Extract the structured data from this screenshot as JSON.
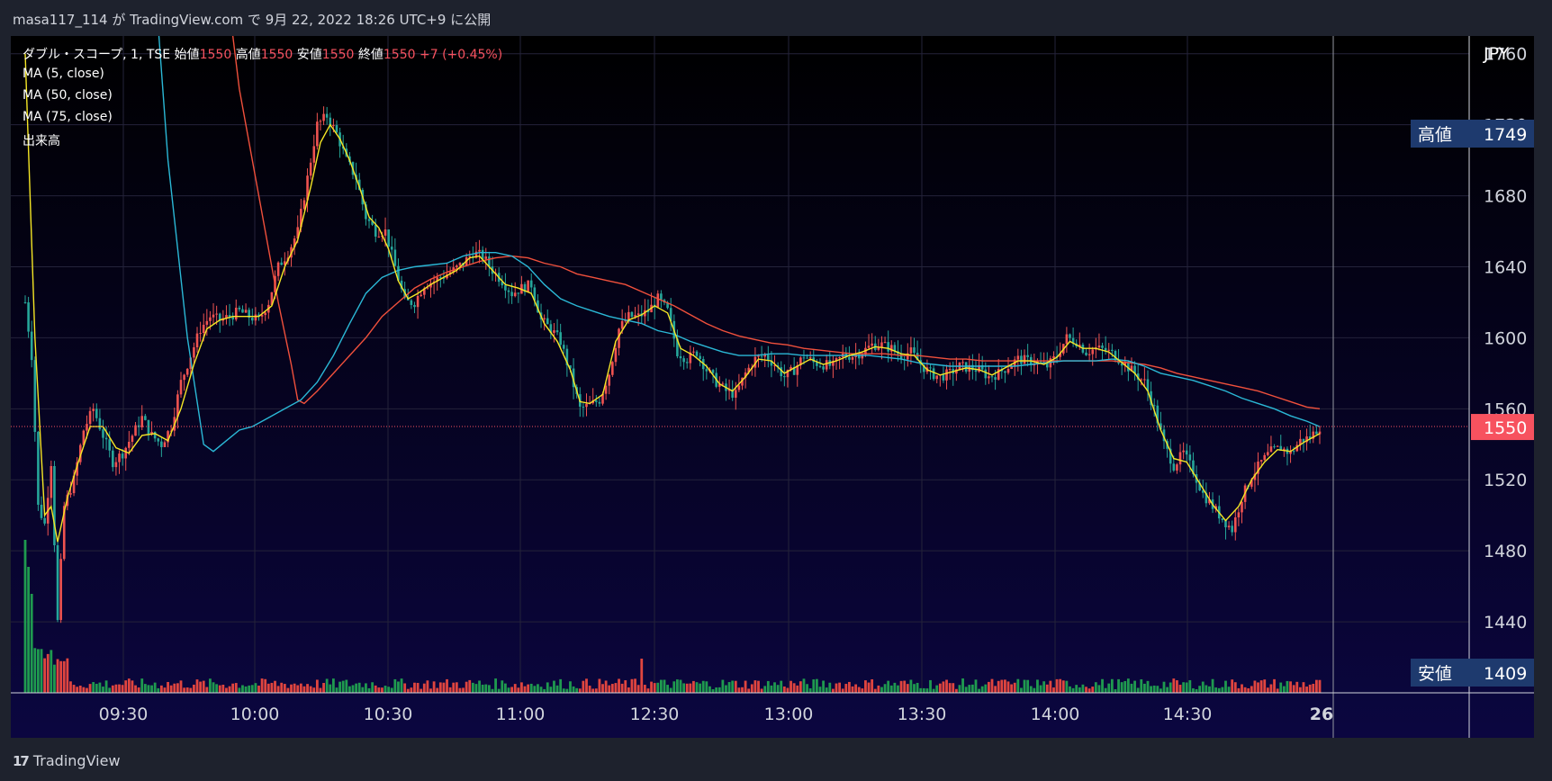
{
  "header": {
    "publish_info": "masa117_114 が TradingView.com で 9月 22, 2022 18:26 UTC+9 に公開"
  },
  "legend": {
    "symbol": "ダブル・スコープ, 1, TSE",
    "open_label": "始値",
    "open_value": "1550",
    "high_label": "高値",
    "high_value": "1550",
    "low_label": "安値",
    "low_value": "1550",
    "close_label": "終値",
    "close_value": "1550",
    "change": "+7 (+0.45%)",
    "indicators": [
      "MA (5, close)",
      "MA (50, close)",
      "MA (75, close)",
      "出来高"
    ]
  },
  "brand": {
    "name": "TradingView"
  },
  "colors": {
    "up": "#ef5350",
    "down": "#26a69a",
    "vol_up": "#e0453f",
    "vol_down": "#1f9a4f",
    "ma5": "#f5e625",
    "ma50": "#2bb8d6",
    "ma75": "#f0503c",
    "price_line": "#f7525f",
    "bg_top": "#000000",
    "bg_bottom": "#0b0640",
    "grid": "#24233a",
    "badge_blue": "#1e3a6e"
  },
  "chart_data": {
    "type": "candlestick",
    "currency": "JPY",
    "y_range": [
      1400,
      1770
    ],
    "y_ticks": [
      1440,
      1480,
      1520,
      1560,
      1600,
      1640,
      1680,
      1720,
      1760
    ],
    "x_ticks": [
      "09:30",
      "10:00",
      "10:30",
      "11:00",
      "12:30",
      "13:00",
      "13:30",
      "14:00",
      "14:30",
      "26"
    ],
    "current_price": {
      "value": 1550,
      "label": "1550"
    },
    "high_marker": {
      "label": "高値",
      "value": 1749
    },
    "low_marker": {
      "label": "安値",
      "value": 1409
    },
    "grid": true,
    "price_path": [
      [
        0,
        1620
      ],
      [
        2,
        1590
      ],
      [
        4,
        1505
      ],
      [
        6,
        1495
      ],
      [
        8,
        1530
      ],
      [
        10,
        1440
      ],
      [
        12,
        1505
      ],
      [
        15,
        1520
      ],
      [
        18,
        1548
      ],
      [
        21,
        1560
      ],
      [
        24,
        1545
      ],
      [
        27,
        1530
      ],
      [
        30,
        1535
      ],
      [
        33,
        1545
      ],
      [
        36,
        1555
      ],
      [
        39,
        1545
      ],
      [
        42,
        1540
      ],
      [
        45,
        1550
      ],
      [
        48,
        1575
      ],
      [
        51,
        1590
      ],
      [
        54,
        1605
      ],
      [
        57,
        1612
      ],
      [
        60,
        1610
      ],
      [
        63,
        1612
      ],
      [
        66,
        1615
      ],
      [
        69,
        1612
      ],
      [
        72,
        1610
      ],
      [
        75,
        1620
      ],
      [
        78,
        1640
      ],
      [
        81,
        1648
      ],
      [
        84,
        1660
      ],
      [
        87,
        1690
      ],
      [
        90,
        1720
      ],
      [
        93,
        1725
      ],
      [
        96,
        1715
      ],
      [
        99,
        1700
      ],
      [
        102,
        1690
      ],
      [
        105,
        1668
      ],
      [
        108,
        1660
      ],
      [
        111,
        1660
      ],
      [
        114,
        1640
      ],
      [
        117,
        1620
      ],
      [
        120,
        1620
      ],
      [
        123,
        1630
      ],
      [
        126,
        1632
      ],
      [
        129,
        1635
      ],
      [
        132,
        1638
      ],
      [
        135,
        1642
      ],
      [
        138,
        1648
      ],
      [
        141,
        1646
      ],
      [
        144,
        1638
      ],
      [
        147,
        1632
      ],
      [
        150,
        1625
      ],
      [
        153,
        1628
      ],
      [
        156,
        1630
      ],
      [
        159,
        1610
      ],
      [
        162,
        1605
      ],
      [
        165,
        1598
      ],
      [
        168,
        1580
      ],
      [
        171,
        1560
      ],
      [
        174,
        1562
      ],
      [
        177,
        1565
      ],
      [
        180,
        1580
      ],
      [
        183,
        1605
      ],
      [
        186,
        1612
      ],
      [
        189,
        1612
      ],
      [
        192,
        1615
      ],
      [
        195,
        1622
      ],
      [
        198,
        1615
      ],
      [
        201,
        1592
      ],
      [
        204,
        1588
      ],
      [
        207,
        1592
      ],
      [
        210,
        1582
      ],
      [
        213,
        1575
      ],
      [
        216,
        1570
      ],
      [
        219,
        1568
      ],
      [
        222,
        1580
      ],
      [
        225,
        1588
      ],
      [
        228,
        1590
      ],
      [
        231,
        1585
      ],
      [
        234,
        1578
      ],
      [
        237,
        1582
      ],
      [
        240,
        1590
      ],
      [
        243,
        1586
      ],
      [
        246,
        1585
      ],
      [
        249,
        1584
      ],
      [
        252,
        1590
      ],
      [
        255,
        1590
      ],
      [
        258,
        1592
      ],
      [
        261,
        1596
      ],
      [
        264,
        1596
      ],
      [
        267,
        1594
      ],
      [
        270,
        1590
      ],
      [
        273,
        1592
      ],
      [
        276,
        1585
      ],
      [
        279,
        1580
      ],
      [
        282,
        1578
      ],
      [
        285,
        1580
      ],
      [
        288,
        1584
      ],
      [
        291,
        1583
      ],
      [
        294,
        1582
      ],
      [
        297,
        1578
      ],
      [
        300,
        1580
      ],
      [
        303,
        1584
      ],
      [
        306,
        1588
      ],
      [
        309,
        1587
      ],
      [
        312,
        1586
      ],
      [
        315,
        1584
      ],
      [
        318,
        1590
      ],
      [
        321,
        1600
      ],
      [
        324,
        1598
      ],
      [
        327,
        1592
      ],
      [
        330,
        1594
      ],
      [
        333,
        1593
      ],
      [
        336,
        1590
      ],
      [
        339,
        1585
      ],
      [
        342,
        1580
      ],
      [
        345,
        1575
      ],
      [
        348,
        1560
      ],
      [
        351,
        1540
      ],
      [
        354,
        1528
      ],
      [
        357,
        1535
      ],
      [
        360,
        1525
      ],
      [
        363,
        1512
      ],
      [
        366,
        1505
      ],
      [
        369,
        1498
      ],
      [
        372,
        1492
      ],
      [
        375,
        1510
      ],
      [
        378,
        1522
      ],
      [
        381,
        1530
      ],
      [
        384,
        1536
      ],
      [
        387,
        1538
      ],
      [
        390,
        1535
      ],
      [
        393,
        1542
      ],
      [
        396,
        1544
      ],
      [
        399,
        1550
      ]
    ],
    "ma5": [
      [
        0,
        1760
      ],
      [
        3,
        1600
      ],
      [
        6,
        1500
      ],
      [
        8,
        1505
      ],
      [
        10,
        1485
      ],
      [
        13,
        1510
      ],
      [
        16,
        1528
      ],
      [
        20,
        1550
      ],
      [
        24,
        1550
      ],
      [
        28,
        1538
      ],
      [
        32,
        1535
      ],
      [
        36,
        1545
      ],
      [
        40,
        1546
      ],
      [
        44,
        1542
      ],
      [
        48,
        1560
      ],
      [
        52,
        1585
      ],
      [
        56,
        1605
      ],
      [
        60,
        1610
      ],
      [
        64,
        1612
      ],
      [
        68,
        1612
      ],
      [
        72,
        1612
      ],
      [
        76,
        1618
      ],
      [
        80,
        1640
      ],
      [
        84,
        1655
      ],
      [
        88,
        1685
      ],
      [
        91,
        1710
      ],
      [
        94,
        1720
      ],
      [
        97,
        1712
      ],
      [
        100,
        1700
      ],
      [
        103,
        1685
      ],
      [
        106,
        1668
      ],
      [
        109,
        1662
      ],
      [
        112,
        1650
      ],
      [
        115,
        1632
      ],
      [
        118,
        1622
      ],
      [
        121,
        1625
      ],
      [
        125,
        1630
      ],
      [
        129,
        1634
      ],
      [
        133,
        1638
      ],
      [
        137,
        1645
      ],
      [
        140,
        1646
      ],
      [
        144,
        1638
      ],
      [
        148,
        1630
      ],
      [
        152,
        1628
      ],
      [
        156,
        1625
      ],
      [
        160,
        1608
      ],
      [
        164,
        1598
      ],
      [
        168,
        1582
      ],
      [
        171,
        1564
      ],
      [
        174,
        1563
      ],
      [
        178,
        1568
      ],
      [
        182,
        1598
      ],
      [
        186,
        1610
      ],
      [
        190,
        1613
      ],
      [
        194,
        1618
      ],
      [
        198,
        1614
      ],
      [
        202,
        1594
      ],
      [
        206,
        1590
      ],
      [
        210,
        1584
      ],
      [
        214,
        1574
      ],
      [
        218,
        1570
      ],
      [
        222,
        1578
      ],
      [
        226,
        1588
      ],
      [
        230,
        1587
      ],
      [
        234,
        1580
      ],
      [
        238,
        1584
      ],
      [
        242,
        1588
      ],
      [
        246,
        1585
      ],
      [
        250,
        1587
      ],
      [
        254,
        1590
      ],
      [
        258,
        1592
      ],
      [
        262,
        1595
      ],
      [
        266,
        1594
      ],
      [
        270,
        1591
      ],
      [
        274,
        1590
      ],
      [
        278,
        1582
      ],
      [
        282,
        1579
      ],
      [
        286,
        1581
      ],
      [
        290,
        1583
      ],
      [
        294,
        1582
      ],
      [
        298,
        1579
      ],
      [
        302,
        1583
      ],
      [
        306,
        1587
      ],
      [
        310,
        1587
      ],
      [
        314,
        1585
      ],
      [
        318,
        1589
      ],
      [
        322,
        1598
      ],
      [
        326,
        1594
      ],
      [
        330,
        1594
      ],
      [
        334,
        1592
      ],
      [
        338,
        1586
      ],
      [
        342,
        1580
      ],
      [
        346,
        1570
      ],
      [
        350,
        1548
      ],
      [
        354,
        1532
      ],
      [
        358,
        1530
      ],
      [
        362,
        1518
      ],
      [
        366,
        1506
      ],
      [
        370,
        1497
      ],
      [
        374,
        1505
      ],
      [
        378,
        1520
      ],
      [
        382,
        1530
      ],
      [
        386,
        1537
      ],
      [
        390,
        1536
      ],
      [
        394,
        1541
      ],
      [
        399,
        1546
      ]
    ],
    "ma50": [
      [
        40,
        1800
      ],
      [
        44,
        1700
      ],
      [
        50,
        1600
      ],
      [
        55,
        1540
      ],
      [
        58,
        1536
      ],
      [
        62,
        1542
      ],
      [
        66,
        1548
      ],
      [
        70,
        1550
      ],
      [
        75,
        1555
      ],
      [
        80,
        1560
      ],
      [
        85,
        1565
      ],
      [
        90,
        1575
      ],
      [
        95,
        1590
      ],
      [
        100,
        1608
      ],
      [
        105,
        1625
      ],
      [
        110,
        1634
      ],
      [
        115,
        1638
      ],
      [
        120,
        1640
      ],
      [
        125,
        1641
      ],
      [
        130,
        1642
      ],
      [
        135,
        1646
      ],
      [
        140,
        1648
      ],
      [
        145,
        1648
      ],
      [
        150,
        1646
      ],
      [
        155,
        1640
      ],
      [
        160,
        1630
      ],
      [
        165,
        1622
      ],
      [
        170,
        1618
      ],
      [
        175,
        1615
      ],
      [
        180,
        1612
      ],
      [
        185,
        1610
      ],
      [
        190,
        1608
      ],
      [
        195,
        1604
      ],
      [
        200,
        1602
      ],
      [
        205,
        1598
      ],
      [
        210,
        1595
      ],
      [
        215,
        1592
      ],
      [
        220,
        1590
      ],
      [
        225,
        1590
      ],
      [
        230,
        1591
      ],
      [
        235,
        1591
      ],
      [
        240,
        1590
      ],
      [
        245,
        1590
      ],
      [
        250,
        1590
      ],
      [
        255,
        1590
      ],
      [
        260,
        1590
      ],
      [
        265,
        1589
      ],
      [
        270,
        1588
      ],
      [
        275,
        1586
      ],
      [
        280,
        1585
      ],
      [
        285,
        1584
      ],
      [
        290,
        1584
      ],
      [
        295,
        1584
      ],
      [
        300,
        1584
      ],
      [
        305,
        1584
      ],
      [
        310,
        1585
      ],
      [
        315,
        1586
      ],
      [
        320,
        1587
      ],
      [
        325,
        1587
      ],
      [
        330,
        1587
      ],
      [
        335,
        1588
      ],
      [
        340,
        1587
      ],
      [
        345,
        1584
      ],
      [
        350,
        1580
      ],
      [
        355,
        1578
      ],
      [
        360,
        1576
      ],
      [
        365,
        1573
      ],
      [
        370,
        1570
      ],
      [
        375,
        1566
      ],
      [
        380,
        1563
      ],
      [
        385,
        1560
      ],
      [
        390,
        1556
      ],
      [
        395,
        1553
      ],
      [
        399,
        1550
      ]
    ],
    "ma75": [
      [
        62,
        1800
      ],
      [
        66,
        1740
      ],
      [
        72,
        1680
      ],
      [
        78,
        1620
      ],
      [
        82,
        1585
      ],
      [
        84,
        1565
      ],
      [
        86,
        1563
      ],
      [
        90,
        1570
      ],
      [
        95,
        1580
      ],
      [
        100,
        1590
      ],
      [
        105,
        1600
      ],
      [
        110,
        1612
      ],
      [
        115,
        1620
      ],
      [
        120,
        1628
      ],
      [
        125,
        1633
      ],
      [
        130,
        1637
      ],
      [
        135,
        1640
      ],
      [
        140,
        1643
      ],
      [
        145,
        1645
      ],
      [
        150,
        1646
      ],
      [
        155,
        1645
      ],
      [
        160,
        1642
      ],
      [
        165,
        1640
      ],
      [
        170,
        1636
      ],
      [
        175,
        1634
      ],
      [
        180,
        1632
      ],
      [
        185,
        1630
      ],
      [
        190,
        1626
      ],
      [
        195,
        1622
      ],
      [
        200,
        1618
      ],
      [
        205,
        1613
      ],
      [
        210,
        1608
      ],
      [
        215,
        1604
      ],
      [
        220,
        1601
      ],
      [
        225,
        1599
      ],
      [
        230,
        1597
      ],
      [
        235,
        1596
      ],
      [
        240,
        1594
      ],
      [
        245,
        1593
      ],
      [
        250,
        1592
      ],
      [
        255,
        1591
      ],
      [
        260,
        1591
      ],
      [
        265,
        1591
      ],
      [
        270,
        1590
      ],
      [
        275,
        1590
      ],
      [
        280,
        1589
      ],
      [
        285,
        1588
      ],
      [
        290,
        1588
      ],
      [
        295,
        1587
      ],
      [
        300,
        1587
      ],
      [
        305,
        1587
      ],
      [
        310,
        1587
      ],
      [
        315,
        1587
      ],
      [
        320,
        1587
      ],
      [
        325,
        1587
      ],
      [
        330,
        1587
      ],
      [
        335,
        1587
      ],
      [
        340,
        1586
      ],
      [
        345,
        1585
      ],
      [
        350,
        1583
      ],
      [
        355,
        1580
      ],
      [
        360,
        1578
      ],
      [
        365,
        1576
      ],
      [
        370,
        1574
      ],
      [
        375,
        1572
      ],
      [
        380,
        1570
      ],
      [
        385,
        1567
      ],
      [
        390,
        1564
      ],
      [
        395,
        1561
      ],
      [
        399,
        1560
      ]
    ]
  }
}
